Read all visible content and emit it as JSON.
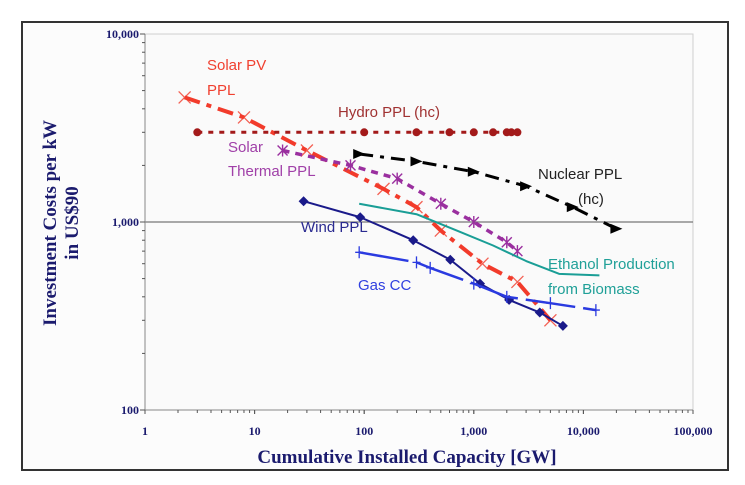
{
  "chart_data": {
    "type": "line",
    "xscale": "log",
    "yscale": "log",
    "xlabel": "Cumulative Installed Capacity [GW]",
    "ylabel": [
      "Investment Costs per kW",
      "in US$90"
    ],
    "xlim": [
      1,
      100000
    ],
    "ylim": [
      100,
      10000
    ],
    "xticks": [
      {
        "v": 1,
        "label": "1"
      },
      {
        "v": 10,
        "label": "10"
      },
      {
        "v": 100,
        "label": "100"
      },
      {
        "v": 1000,
        "label": "1,000"
      },
      {
        "v": 10000,
        "label": "10,000"
      },
      {
        "v": 100000,
        "label": "100,000"
      }
    ],
    "yticks": [
      {
        "v": 100,
        "label": "100"
      },
      {
        "v": 1000,
        "label": "1,000"
      },
      {
        "v": 10000,
        "label": "10,000"
      }
    ],
    "gridlines": [
      1000
    ],
    "legend": "inline labels",
    "series": [
      {
        "name": "Solar PV PPL",
        "label_lines": [
          "Solar PV",
          "PPL"
        ],
        "color": "#f23b2b",
        "label_color": "#f04030",
        "marker": "x",
        "points": [
          [
            2.3,
            4600
          ],
          [
            8,
            3600
          ],
          [
            30,
            2400
          ],
          [
            150,
            1500
          ],
          [
            300,
            1200
          ],
          [
            500,
            900
          ],
          [
            1200,
            600
          ],
          [
            2500,
            480
          ],
          [
            5000,
            300
          ]
        ]
      },
      {
        "name": "Hydro PPL (hc)",
        "label_lines": [
          "Hydro PPL (hc)"
        ],
        "color": "#a31a1a",
        "label_color": "#a03232",
        "marker": "circle",
        "points": [
          [
            3,
            3000
          ],
          [
            100,
            3000
          ],
          [
            300,
            3000
          ],
          [
            600,
            3000
          ],
          [
            1000,
            3000
          ],
          [
            1500,
            3000
          ],
          [
            2000,
            3000
          ],
          [
            2200,
            3000
          ],
          [
            2500,
            3000
          ]
        ]
      },
      {
        "name": "Solar Thermal PPL",
        "label_lines": [
          "Solar",
          "Thermal PPL"
        ],
        "color": "#9a2f9f",
        "label_color": "#a040a8",
        "marker": "asterisk",
        "points": [
          [
            18,
            2400
          ],
          [
            75,
            2000
          ],
          [
            200,
            1700
          ],
          [
            500,
            1250
          ],
          [
            1000,
            1000
          ],
          [
            2000,
            780
          ],
          [
            2500,
            700
          ]
        ]
      },
      {
        "name": "Nuclear PPL (hc)",
        "label_lines": [
          "Nuclear PPL",
          "(hc)"
        ],
        "color": "#000000",
        "label_color": "#222222",
        "marker": "triangle",
        "points": [
          [
            90,
            2300
          ],
          [
            300,
            2100
          ],
          [
            1000,
            1850
          ],
          [
            3000,
            1550
          ],
          [
            8000,
            1200
          ],
          [
            20000,
            920
          ]
        ]
      },
      {
        "name": "Wind PPL",
        "label_lines": [
          "Wind PPL"
        ],
        "color": "#1a1a8a",
        "label_color": "#2a2a90",
        "marker": "diamond",
        "points": [
          [
            28,
            1290
          ],
          [
            92,
            1060
          ],
          [
            280,
            800
          ],
          [
            610,
            630
          ],
          [
            1140,
            470
          ],
          [
            2100,
            385
          ],
          [
            4000,
            330
          ],
          [
            6500,
            280
          ]
        ]
      },
      {
        "name": "Ethanol Production from Biomass",
        "label_lines": [
          "Ethanol Production",
          "from Biomass"
        ],
        "color": "#1a9e96",
        "label_color": "#20a098",
        "marker": "none",
        "points": [
          [
            90,
            1250
          ],
          [
            300,
            1100
          ],
          [
            700,
            900
          ],
          [
            1500,
            750
          ],
          [
            3000,
            620
          ],
          [
            6000,
            530
          ],
          [
            14000,
            520
          ]
        ]
      },
      {
        "name": "Gas CC",
        "label_lines": [
          "Gas CC"
        ],
        "color": "#2a3ae0",
        "label_color": "#3040e0",
        "marker": "plus",
        "points": [
          [
            90,
            690
          ],
          [
            300,
            610
          ],
          [
            400,
            570
          ],
          [
            1000,
            470
          ],
          [
            2000,
            400
          ],
          [
            5000,
            370
          ],
          [
            13000,
            340
          ]
        ]
      }
    ]
  }
}
